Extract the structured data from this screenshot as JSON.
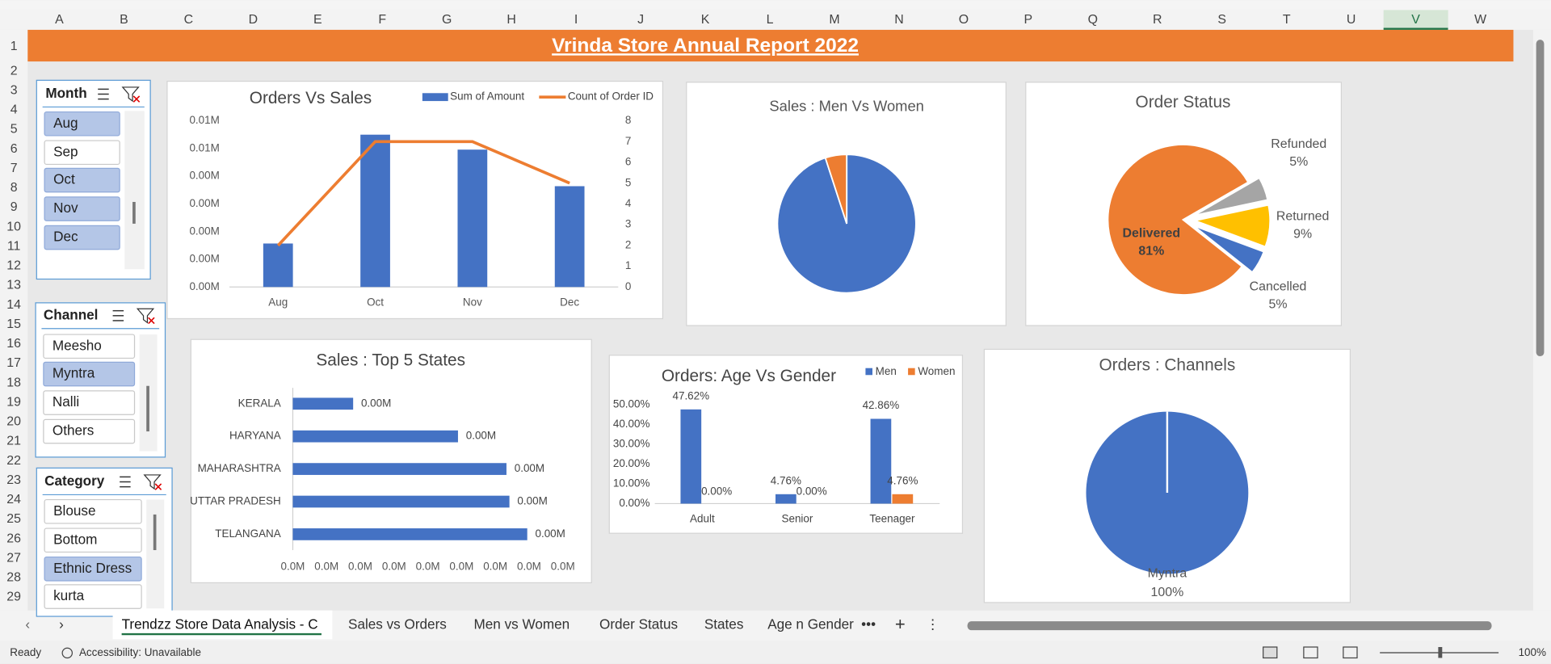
{
  "sheet": {
    "columns": [
      "A",
      "B",
      "C",
      "D",
      "E",
      "F",
      "G",
      "H",
      "I",
      "J",
      "K",
      "L",
      "M",
      "N",
      "O",
      "P",
      "Q",
      "R",
      "S",
      "T",
      "U",
      "V",
      "W"
    ],
    "rows": [
      1,
      2,
      3,
      4,
      5,
      6,
      7,
      8,
      9,
      10,
      11,
      12,
      13,
      14,
      15,
      16,
      17,
      18,
      19,
      20,
      21,
      22,
      23,
      24,
      25,
      26,
      27,
      28,
      29
    ],
    "title": "Vrinda Store Annual Report 2022"
  },
  "slicers": [
    {
      "title": "Month",
      "items": [
        "Aug",
        "Sep",
        "Oct",
        "Nov",
        "Dec"
      ],
      "selected": [
        true,
        false,
        true,
        true,
        true
      ]
    },
    {
      "title": "Channel",
      "items": [
        "Meesho",
        "Myntra",
        "Nalli",
        "Others"
      ],
      "selected": [
        false,
        true,
        false,
        false
      ]
    },
    {
      "title": "Category",
      "items": [
        "Blouse",
        "Bottom",
        "Ethnic Dress",
        "kurta"
      ],
      "selected": [
        false,
        false,
        true,
        false
      ]
    }
  ],
  "chart_data": [
    {
      "type": "combo",
      "title": "Orders Vs Sales",
      "categories": [
        "Aug",
        "Oct",
        "Nov",
        "Dec"
      ],
      "series": [
        {
          "name": "Sum of Amount",
          "type": "bar",
          "color": "#4472c4",
          "values": [
            1570,
            5500,
            4960,
            3640
          ]
        },
        {
          "name": "Count of Order ID",
          "type": "line",
          "color": "#ed7d31",
          "axis": "y2",
          "values": [
            2,
            7,
            7,
            5
          ]
        }
      ],
      "ylim": [
        0,
        6000
      ],
      "yticks": [
        {
          "value": 0,
          "label": "0.00M"
        },
        {
          "value": 1000,
          "label": "0.00M"
        },
        {
          "value": 2000,
          "label": "0.00M"
        },
        {
          "value": 3000,
          "label": "0.00M"
        },
        {
          "value": 4000,
          "label": "0.00M"
        },
        {
          "value": 5000,
          "label": "0.01M"
        },
        {
          "value": 6000,
          "label": "0.01M"
        }
      ],
      "y2lim": [
        0,
        8
      ],
      "y2ticks": [
        0,
        1,
        2,
        3,
        4,
        5,
        6,
        7,
        8
      ],
      "legend": "top-right"
    },
    {
      "type": "pie",
      "title": "Sales : Men Vs Women",
      "values": [
        95,
        5
      ],
      "colors": [
        "#4472c4",
        "#ed7d31"
      ]
    },
    {
      "type": "pie",
      "title": "Order Status",
      "categories": [
        "Delivered",
        "Refunded",
        "Returned",
        "Cancelled"
      ],
      "values": [
        81,
        5,
        9,
        5
      ],
      "value_labels": [
        "81%",
        "5%",
        "9%",
        "5%"
      ],
      "colors": [
        "#ed7d31",
        "#a5a5a5",
        "#ffc000",
        "#4472c4"
      ]
    },
    {
      "type": "hbar",
      "title": "Sales : Top 5 States",
      "categories": [
        "KERALA",
        "HARYANA",
        "MAHARASHTRA",
        "UTTAR PRADESH",
        "TELANGANA"
      ],
      "values": [
        894,
        2447,
        3165,
        3209,
        3473
      ],
      "value_labels": [
        "0.00M",
        "0.00M",
        "0.00M",
        "0.00M",
        "0.00M"
      ],
      "color": "#4472c4",
      "xlim": [
        0,
        4000
      ],
      "xticks": [
        {
          "value": 0,
          "label": "0.0M"
        },
        {
          "value": 500,
          "label": "0.0M"
        },
        {
          "value": 1000,
          "label": "0.0M"
        },
        {
          "value": 1500,
          "label": "0.0M"
        },
        {
          "value": 2000,
          "label": "0.0M"
        },
        {
          "value": 2500,
          "label": "0.0M"
        },
        {
          "value": 3000,
          "label": "0.0M"
        },
        {
          "value": 3500,
          "label": "0.0M"
        },
        {
          "value": 4000,
          "label": "0.0M"
        }
      ]
    },
    {
      "type": "bar",
      "title": "Orders: Age Vs Gender",
      "categories": [
        "Adult",
        "Senior",
        "Teenager"
      ],
      "series": [
        {
          "name": "Men",
          "color": "#4472c4",
          "values": [
            47.62,
            4.76,
            42.86
          ],
          "value_labels": [
            "47.62%",
            "4.76%",
            "42.86%"
          ]
        },
        {
          "name": "Women",
          "color": "#ed7d31",
          "values": [
            0,
            0,
            4.76
          ],
          "value_labels": [
            "0.00%",
            "0.00%",
            "4.76%"
          ]
        }
      ],
      "ylim": [
        0,
        50
      ],
      "yticks": [
        {
          "value": 0,
          "label": "0.00%"
        },
        {
          "value": 10,
          "label": "10.00%"
        },
        {
          "value": 20,
          "label": "20.00%"
        },
        {
          "value": 30,
          "label": "30.00%"
        },
        {
          "value": 40,
          "label": "40.00%"
        },
        {
          "value": 50,
          "label": "50.00%"
        }
      ],
      "legend": "top-right"
    },
    {
      "type": "pie",
      "title": "Orders : Channels",
      "categories": [
        "Myntra"
      ],
      "values": [
        100
      ],
      "value_labels": [
        "100%"
      ],
      "colors": [
        "#4472c4"
      ]
    }
  ],
  "tabs": [
    "Trendzz Store Data Analysis - C",
    "Sales vs Orders",
    "Men vs Women",
    "Order Status",
    "States",
    "Age n Gender"
  ],
  "status": {
    "ready": "Ready",
    "accessibility": "Accessibility: Unavailable",
    "zoom": "100%"
  }
}
